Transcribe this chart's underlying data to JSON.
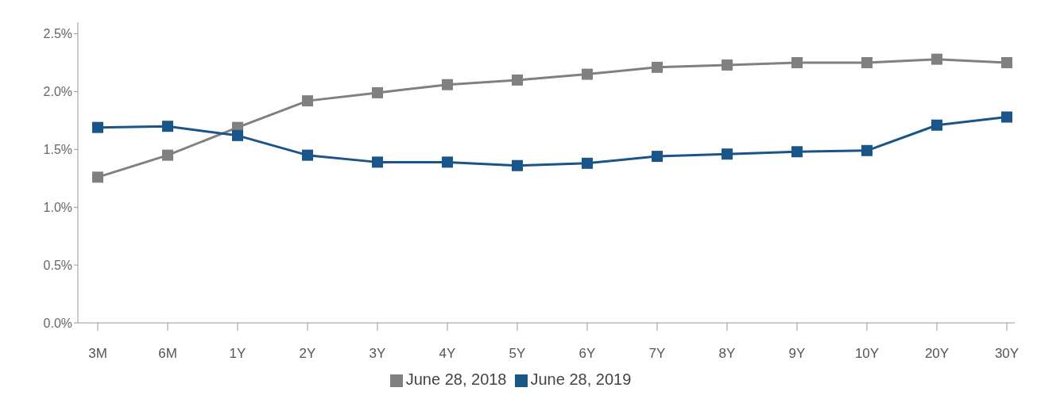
{
  "chart_data": {
    "type": "line",
    "categories": [
      "3M",
      "6M",
      "1Y",
      "2Y",
      "3Y",
      "4Y",
      "5Y",
      "6Y",
      "7Y",
      "8Y",
      "9Y",
      "10Y",
      "20Y",
      "30Y"
    ],
    "series": [
      {
        "name": "June 28, 2018",
        "color": "#808080",
        "values": [
          1.26,
          1.45,
          1.69,
          1.92,
          1.99,
          2.06,
          2.1,
          2.15,
          2.21,
          2.23,
          2.25,
          2.25,
          2.28,
          2.25
        ]
      },
      {
        "name": "June 28, 2019",
        "color": "#1a5589",
        "values": [
          1.69,
          1.7,
          1.62,
          1.45,
          1.39,
          1.39,
          1.36,
          1.38,
          1.44,
          1.46,
          1.48,
          1.49,
          1.71,
          1.78
        ]
      }
    ],
    "ylim": [
      0,
      2.6
    ],
    "yticks": [
      {
        "value": 0,
        "label": "0.0%"
      },
      {
        "value": 0.5,
        "label": "0.5%"
      },
      {
        "value": 1,
        "label": "1.0%"
      },
      {
        "value": 1.5,
        "label": "1.5%"
      },
      {
        "value": 2,
        "label": "2.0%"
      },
      {
        "value": 2.5,
        "label": "2.5%"
      }
    ],
    "grid": false,
    "legend": "bottom",
    "marker": "square",
    "line_style": "solid"
  }
}
